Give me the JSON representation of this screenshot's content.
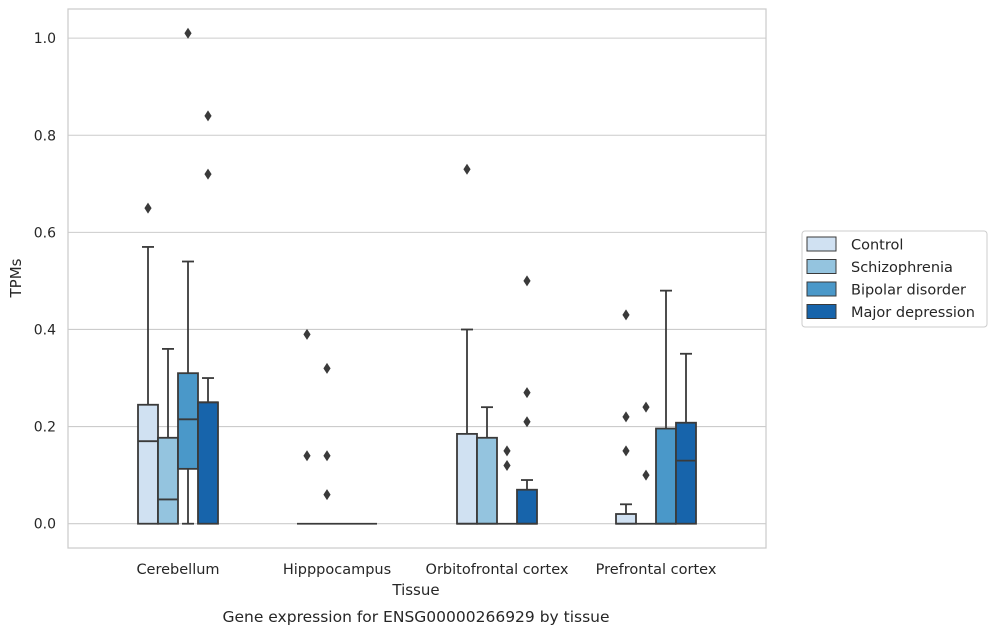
{
  "chart_data": {
    "type": "box",
    "title": "",
    "caption": "Gene expression for ENSG00000266929 by tissue",
    "xlabel": "Tissue",
    "ylabel": "TPMs",
    "ylim": [
      -0.05,
      1.06
    ],
    "yticks": [
      0.0,
      0.2,
      0.4,
      0.6,
      0.8,
      1.0
    ],
    "ytick_labels": [
      "0.0",
      "0.2",
      "0.4",
      "0.6",
      "0.8",
      "1.0"
    ],
    "grid": "horizontal",
    "legend_position": "right",
    "categories": [
      "Cerebellum",
      "Hipppocampus",
      "Orbitofrontal cortex",
      "Prefrontal cortex"
    ],
    "series": [
      {
        "name": "Control",
        "color": "#d0e1f2",
        "boxes": [
          {
            "q1": 0.0,
            "median": 0.17,
            "q3": 0.245,
            "whisker_low": 0.0,
            "whisker_high": 0.57,
            "outliers": [
              0.65
            ]
          },
          {
            "q1": 0.0,
            "median": 0.0,
            "q3": 0.0,
            "whisker_low": 0.0,
            "whisker_high": 0.0,
            "outliers": [
              0.39,
              0.14
            ]
          },
          {
            "q1": 0.0,
            "median": 0.0,
            "q3": 0.185,
            "whisker_low": 0.0,
            "whisker_high": 0.4,
            "outliers": [
              0.73
            ]
          },
          {
            "q1": 0.0,
            "median": 0.0,
            "q3": 0.02,
            "whisker_low": 0.0,
            "whisker_high": 0.04,
            "outliers": [
              0.43,
              0.22,
              0.15
            ]
          }
        ]
      },
      {
        "name": "Schizophrenia",
        "color": "#94c4df",
        "boxes": [
          {
            "q1": 0.0,
            "median": 0.05,
            "q3": 0.177,
            "whisker_low": 0.0,
            "whisker_high": 0.36,
            "outliers": []
          },
          {
            "q1": 0.0,
            "median": 0.0,
            "q3": 0.0,
            "whisker_low": 0.0,
            "whisker_high": 0.0,
            "outliers": [
              0.32,
              0.14,
              0.06
            ]
          },
          {
            "q1": 0.0,
            "median": 0.0,
            "q3": 0.177,
            "whisker_low": 0.0,
            "whisker_high": 0.24,
            "outliers": []
          },
          {
            "q1": 0.0,
            "median": 0.0,
            "q3": 0.0,
            "whisker_low": 0.0,
            "whisker_high": 0.0,
            "outliers": [
              0.24,
              0.1
            ]
          }
        ]
      },
      {
        "name": "Bipolar disorder",
        "color": "#4a98c9",
        "boxes": [
          {
            "q1": 0.113,
            "median": 0.215,
            "q3": 0.31,
            "whisker_low": 0.0,
            "whisker_high": 0.54,
            "outliers": [
              1.01
            ]
          },
          {
            "q1": 0.0,
            "median": 0.0,
            "q3": 0.0,
            "whisker_low": 0.0,
            "whisker_high": 0.0,
            "outliers": []
          },
          {
            "q1": 0.0,
            "median": 0.0,
            "q3": 0.0,
            "whisker_low": 0.0,
            "whisker_high": 0.0,
            "outliers": [
              0.15,
              0.12
            ]
          },
          {
            "q1": 0.0,
            "median": 0.0,
            "q3": 0.196,
            "whisker_low": 0.0,
            "whisker_high": 0.48,
            "outliers": []
          }
        ]
      },
      {
        "name": "Major depression",
        "color": "#1764ab",
        "boxes": [
          {
            "q1": 0.0,
            "median": 0.25,
            "q3": 0.25,
            "whisker_low": 0.0,
            "whisker_high": 0.3,
            "outliers": [
              0.84,
              0.72
            ]
          },
          {
            "q1": 0.0,
            "median": 0.0,
            "q3": 0.0,
            "whisker_low": 0.0,
            "whisker_high": 0.0,
            "outliers": []
          },
          {
            "q1": 0.0,
            "median": 0.0,
            "q3": 0.07,
            "whisker_low": 0.0,
            "whisker_high": 0.09,
            "outliers": [
              0.5,
              0.27,
              0.21
            ]
          },
          {
            "q1": 0.0,
            "median": 0.13,
            "q3": 0.208,
            "whisker_low": 0.0,
            "whisker_high": 0.35,
            "outliers": []
          }
        ]
      }
    ]
  }
}
